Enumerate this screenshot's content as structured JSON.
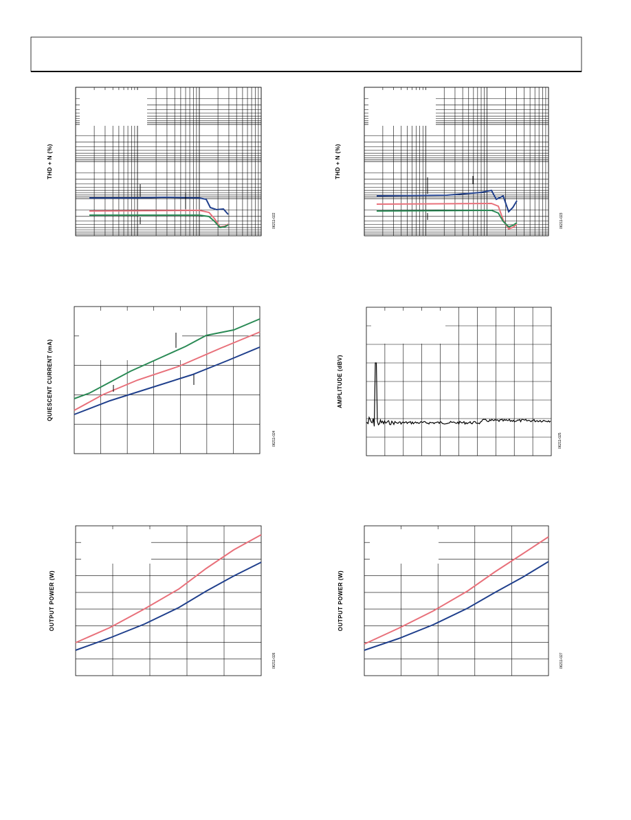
{
  "figures": [
    {
      "ylabel": "THD + N (%)",
      "code": "06211-022"
    },
    {
      "ylabel": "THD + N (%)",
      "code": "06211-023"
    },
    {
      "ylabel": "QUIESCENT CURRENT (mA)",
      "code": "06211-024"
    },
    {
      "ylabel": "AMPLITUDE (dBV)",
      "code": "06211-025"
    },
    {
      "ylabel": "OUTPUT POWER (W)",
      "code": "06211-026"
    },
    {
      "ylabel": "OUTPUT POWER (W)",
      "code": "06211-027"
    }
  ]
}
